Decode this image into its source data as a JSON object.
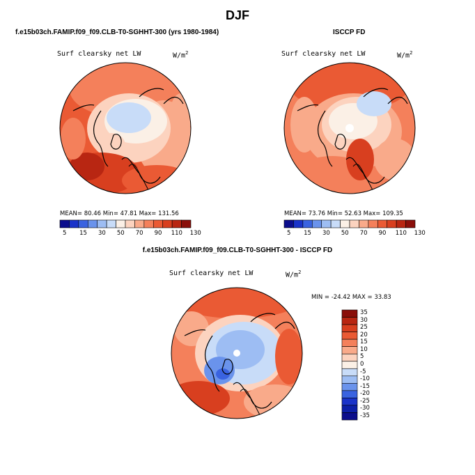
{
  "figure": {
    "season_title": "DJF"
  },
  "panels": [
    {
      "title": "f.e15b03ch.FAMIP.f09_f09.CLB-T0-SGHHT-300 (yrs 1980-1984)",
      "variable": "Surf clearsky net LW",
      "units": "W/m",
      "units_superscript": "2",
      "stats": "MEAN=   80.46   Min=   47.81   Max=  131.56"
    },
    {
      "title": "ISCCP FD",
      "variable": "Surf clearsky net LW",
      "units": "W/m",
      "units_superscript": "2",
      "stats": "MEAN=   73.76   Min=   52.63   Max=  109.35"
    },
    {
      "title": "f.e15b03ch.FAMIP.f09_f09.CLB-T0-SGHHT-300 - ISCCP FD",
      "variable": "Surf clearsky net LW",
      "units": "W/m",
      "units_superscript": "2",
      "stats": "MIN = -24.42  MAX =  33.83"
    }
  ],
  "colorbars": {
    "absolute": {
      "labels": [
        "5",
        "15",
        "30",
        "50",
        "70",
        "90",
        "110",
        "130"
      ],
      "colors": [
        "#0b0d8c",
        "#1a33c9",
        "#3a63e0",
        "#6a93ec",
        "#9dbdf3",
        "#c8dcf8",
        "#fbf0e6",
        "#fcd3bf",
        "#f9aa8a",
        "#f4805b",
        "#ea5a34",
        "#d83f1f",
        "#b82612",
        "#8a0f0a"
      ]
    },
    "difference": {
      "labels": [
        "35",
        "30",
        "25",
        "20",
        "15",
        "10",
        "5",
        "0",
        "-5",
        "-10",
        "-15",
        "-20",
        "-25",
        "-30",
        "-35"
      ],
      "colors": [
        "#8a0f0a",
        "#b82612",
        "#d83f1f",
        "#ea5a34",
        "#f4805b",
        "#f9aa8a",
        "#fcd3bf",
        "#fbf0e6",
        "#c8dcf8",
        "#9dbdf3",
        "#6a93ec",
        "#3a63e0",
        "#1a33c9",
        "#0c1fa8",
        "#0b0d8c"
      ]
    }
  },
  "chart_data": [
    {
      "type": "heatmap",
      "projection": "north polar stereographic",
      "title": "f.e15b03ch.FAMIP.f09_f09.CLB-T0-SGHHT-300 (yrs 1980-1984)",
      "variable": "Surf clearsky net LW",
      "units": "W/m2",
      "season": "DJF",
      "mean": 80.46,
      "min": 47.81,
      "max": 131.56,
      "contour_levels": [
        5,
        10,
        15,
        20,
        30,
        40,
        50,
        60,
        70,
        80,
        90,
        100,
        110,
        120,
        130
      ]
    },
    {
      "type": "heatmap",
      "projection": "north polar stereographic",
      "title": "ISCCP FD",
      "variable": "Surf clearsky net LW",
      "units": "W/m2",
      "season": "DJF",
      "mean": 73.76,
      "min": 52.63,
      "max": 109.35,
      "contour_levels": [
        5,
        10,
        15,
        20,
        30,
        40,
        50,
        60,
        70,
        80,
        90,
        100,
        110,
        120,
        130
      ]
    },
    {
      "type": "heatmap",
      "projection": "north polar stereographic",
      "title": "f.e15b03ch.FAMIP.f09_f09.CLB-T0-SGHHT-300 - ISCCP FD",
      "variable": "Surf clearsky net LW",
      "units": "W/m2",
      "season": "DJF",
      "min": -24.42,
      "max": 33.83,
      "contour_levels": [
        -35,
        -30,
        -25,
        -20,
        -15,
        -10,
        -5,
        0,
        5,
        10,
        15,
        20,
        25,
        30,
        35
      ]
    }
  ]
}
